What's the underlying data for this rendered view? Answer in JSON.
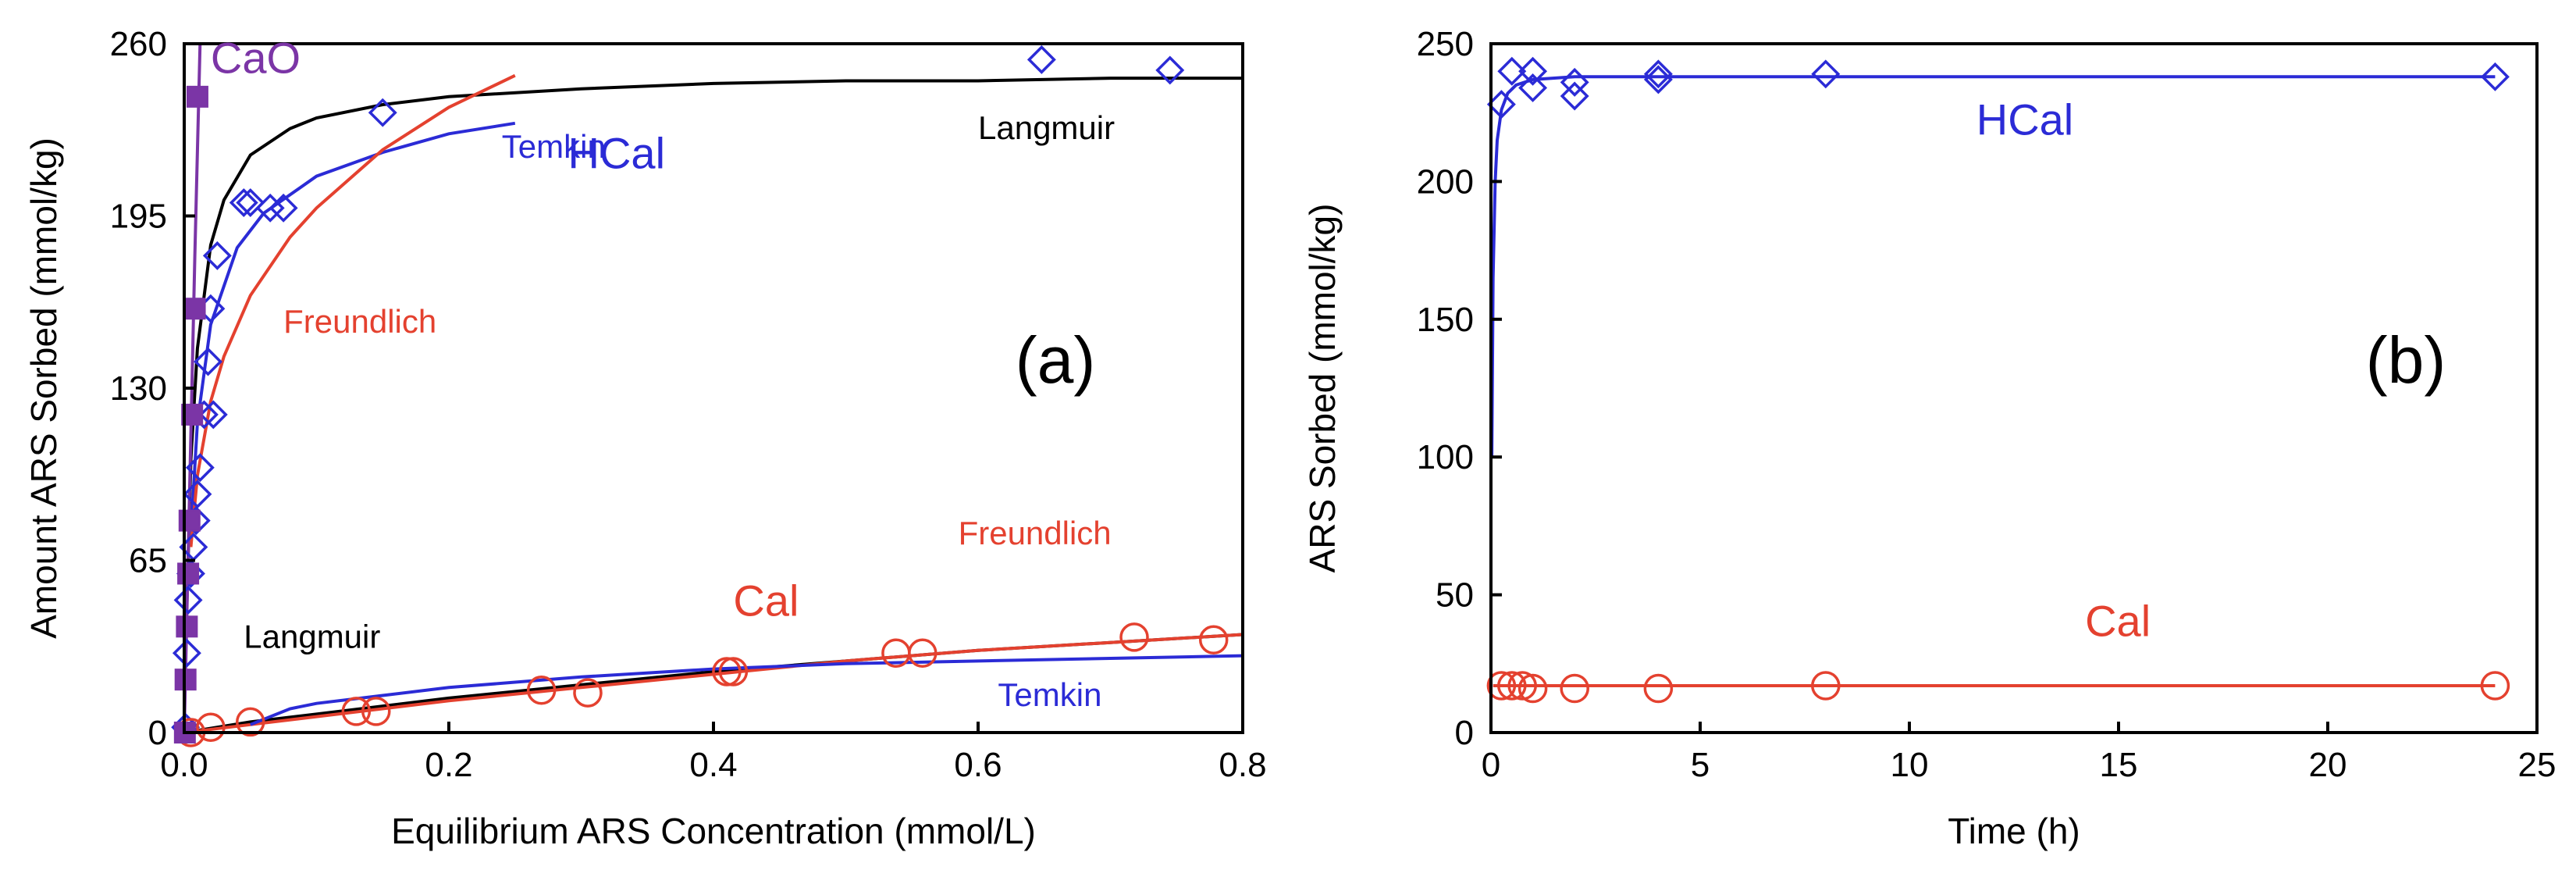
{
  "chart_data": [
    {
      "type": "scatter",
      "panel_label": "(a)",
      "xlabel": "Equilibrium ARS Concentration (mmol/L)",
      "ylabel": "Amount ARS Sorbed (mmol/kg)",
      "xlim": [
        0,
        0.8
      ],
      "ylim": [
        0,
        260
      ],
      "xticks": [
        0,
        0.2,
        0.4,
        0.6,
        0.8
      ],
      "xtick_labels": [
        "0.0",
        "0.2",
        "0.4",
        "0.6",
        "0.8"
      ],
      "yticks": [
        0,
        65,
        130,
        195,
        260
      ],
      "ytick_labels": [
        "0",
        "65",
        "130",
        "195",
        "260"
      ],
      "grid": false,
      "colors": {
        "HCal": "#2b2bd6",
        "Cal": "#e4412f",
        "CaO": "#7b35a6",
        "Langmuir": "#000000",
        "Temkin": "#2b2bd6",
        "Freundlich": "#e4412f"
      },
      "series": [
        {
          "name": "HCal",
          "marker": "diamond",
          "x": [
            0.001,
            0.002,
            0.003,
            0.005,
            0.007,
            0.009,
            0.01,
            0.012,
            0.015,
            0.018,
            0.02,
            0.022,
            0.025,
            0.045,
            0.05,
            0.065,
            0.075,
            0.15,
            0.648,
            0.745
          ],
          "y": [
            2,
            30,
            50,
            60,
            70,
            80,
            90,
            100,
            120,
            140,
            160,
            120,
            180,
            200,
            200,
            198,
            198,
            234,
            254,
            250
          ]
        },
        {
          "name": "Cal",
          "marker": "circle",
          "x": [
            0.005,
            0.02,
            0.05,
            0.13,
            0.145,
            0.27,
            0.305,
            0.41,
            0.415,
            0.538,
            0.558,
            0.718,
            0.778
          ],
          "y": [
            0,
            2,
            4,
            8,
            8,
            16,
            15,
            23,
            23,
            30,
            30,
            36,
            35
          ]
        },
        {
          "name": "CaO",
          "marker": "square",
          "x": [
            0.0005,
            0.001,
            0.002,
            0.003,
            0.004,
            0.006,
            0.008,
            0.01
          ],
          "y": [
            0,
            20,
            40,
            60,
            80,
            120,
            160,
            240
          ]
        }
      ],
      "fits": [
        {
          "name": "Langmuir (HCal)",
          "x": [
            0.001,
            0.005,
            0.01,
            0.02,
            0.03,
            0.05,
            0.08,
            0.1,
            0.15,
            0.2,
            0.3,
            0.4,
            0.5,
            0.6,
            0.7,
            0.8
          ],
          "y": [
            30,
            103,
            145,
            184,
            201,
            218,
            228,
            232,
            237,
            240,
            243,
            245,
            246,
            246,
            247,
            247
          ]
        },
        {
          "name": "Temkin (HCal)",
          "x": [
            0.005,
            0.01,
            0.02,
            0.04,
            0.06,
            0.1,
            0.15,
            0.2,
            0.25
          ],
          "y": [
            75,
            117,
            154,
            183,
            196,
            210,
            219,
            226,
            230
          ]
        },
        {
          "name": "Freundlich (HCal)",
          "x": [
            0.005,
            0.01,
            0.02,
            0.03,
            0.05,
            0.08,
            0.1,
            0.15,
            0.2,
            0.25
          ],
          "y": [
            70,
            97,
            125,
            142,
            165,
            187,
            198,
            220,
            236,
            248
          ]
        },
        {
          "name": "Langmuir (Cal)",
          "x": [
            0,
            0.05,
            0.1,
            0.2,
            0.3,
            0.4,
            0.5,
            0.6,
            0.7,
            0.8
          ],
          "y": [
            0,
            4,
            7,
            13,
            18,
            23,
            27,
            31,
            34,
            37
          ]
        },
        {
          "name": "Freundlich (Cal)",
          "x": [
            0,
            0.05,
            0.1,
            0.2,
            0.3,
            0.4,
            0.5,
            0.6,
            0.7,
            0.8
          ],
          "y": [
            0,
            3,
            6,
            12,
            17,
            22,
            27,
            31,
            34,
            37
          ]
        },
        {
          "name": "Temkin (Cal)",
          "x": [
            0.05,
            0.08,
            0.1,
            0.15,
            0.2,
            0.3,
            0.4,
            0.5,
            0.6,
            0.7,
            0.8
          ],
          "y": [
            3,
            9,
            11,
            14,
            17,
            21,
            24,
            26,
            27,
            28,
            29
          ]
        },
        {
          "name": "CaO fit",
          "x": [
            0.0,
            0.004,
            0.008,
            0.012
          ],
          "y": [
            0,
            90,
            180,
            260
          ]
        }
      ],
      "annotations": [
        {
          "text": "CaO",
          "color": "#7b35a6",
          "x": 0.02,
          "y": 249
        },
        {
          "text": "HCal",
          "color": "#2b2bd6",
          "x": 0.29,
          "y": 213
        },
        {
          "text": "Temkin",
          "color": "#2b2bd6",
          "x": 0.24,
          "y": 217
        },
        {
          "text": "Langmuir",
          "color": "#000000",
          "x": 0.6,
          "y": 224
        },
        {
          "text": "Freundlich",
          "color": "#e4412f",
          "x": 0.075,
          "y": 151
        },
        {
          "text": "Langmuir",
          "color": "#000000",
          "x": 0.045,
          "y": 32
        },
        {
          "text": "Cal",
          "color": "#e4412f",
          "x": 0.415,
          "y": 44
        },
        {
          "text": "Freundlich",
          "color": "#e4412f",
          "x": 0.585,
          "y": 71
        },
        {
          "text": "Temkin",
          "color": "#2b2bd6",
          "x": 0.615,
          "y": 10
        }
      ]
    },
    {
      "type": "scatter",
      "panel_label": "(b)",
      "xlabel": "Time (h)",
      "ylabel": "ARS Sorbed (mmol/kg)",
      "xlim": [
        0,
        25
      ],
      "ylim": [
        0,
        250
      ],
      "xticks": [
        0,
        5,
        10,
        15,
        20,
        25
      ],
      "xtick_labels": [
        "0",
        "5",
        "10",
        "15",
        "20",
        "25"
      ],
      "yticks": [
        0,
        50,
        100,
        150,
        200,
        250
      ],
      "ytick_labels": [
        "0",
        "50",
        "100",
        "150",
        "200",
        "250"
      ],
      "grid": false,
      "colors": {
        "HCal": "#2b2bd6",
        "Cal": "#e4412f"
      },
      "series": [
        {
          "name": "HCal",
          "marker": "diamond",
          "x": [
            0.25,
            0.5,
            1,
            1,
            2,
            2,
            4,
            4,
            8,
            24
          ],
          "y": [
            228,
            240,
            234,
            240,
            231,
            236,
            237,
            239,
            239,
            238
          ]
        },
        {
          "name": "Cal",
          "marker": "circle",
          "x": [
            0.25,
            0.5,
            0.75,
            1,
            2,
            4,
            8,
            24
          ],
          "y": [
            17,
            17,
            17,
            16,
            16,
            16,
            17,
            17
          ]
        }
      ],
      "fits": [
        {
          "name": "HCal fit",
          "x": [
            0.02,
            0.05,
            0.1,
            0.15,
            0.25,
            0.4,
            0.6,
            1,
            2,
            4,
            8,
            12,
            24
          ],
          "y": [
            100,
            165,
            200,
            215,
            226,
            232,
            235,
            237,
            238,
            238,
            238,
            238,
            238
          ]
        },
        {
          "name": "Cal fit",
          "x": [
            0.05,
            24
          ],
          "y": [
            17,
            17
          ]
        }
      ],
      "annotations": [
        {
          "text": "HCal",
          "color": "#2b2bd6",
          "x": 11.6,
          "y": 217
        },
        {
          "text": "Cal",
          "color": "#e4412f",
          "x": 14.2,
          "y": 35
        }
      ]
    }
  ]
}
